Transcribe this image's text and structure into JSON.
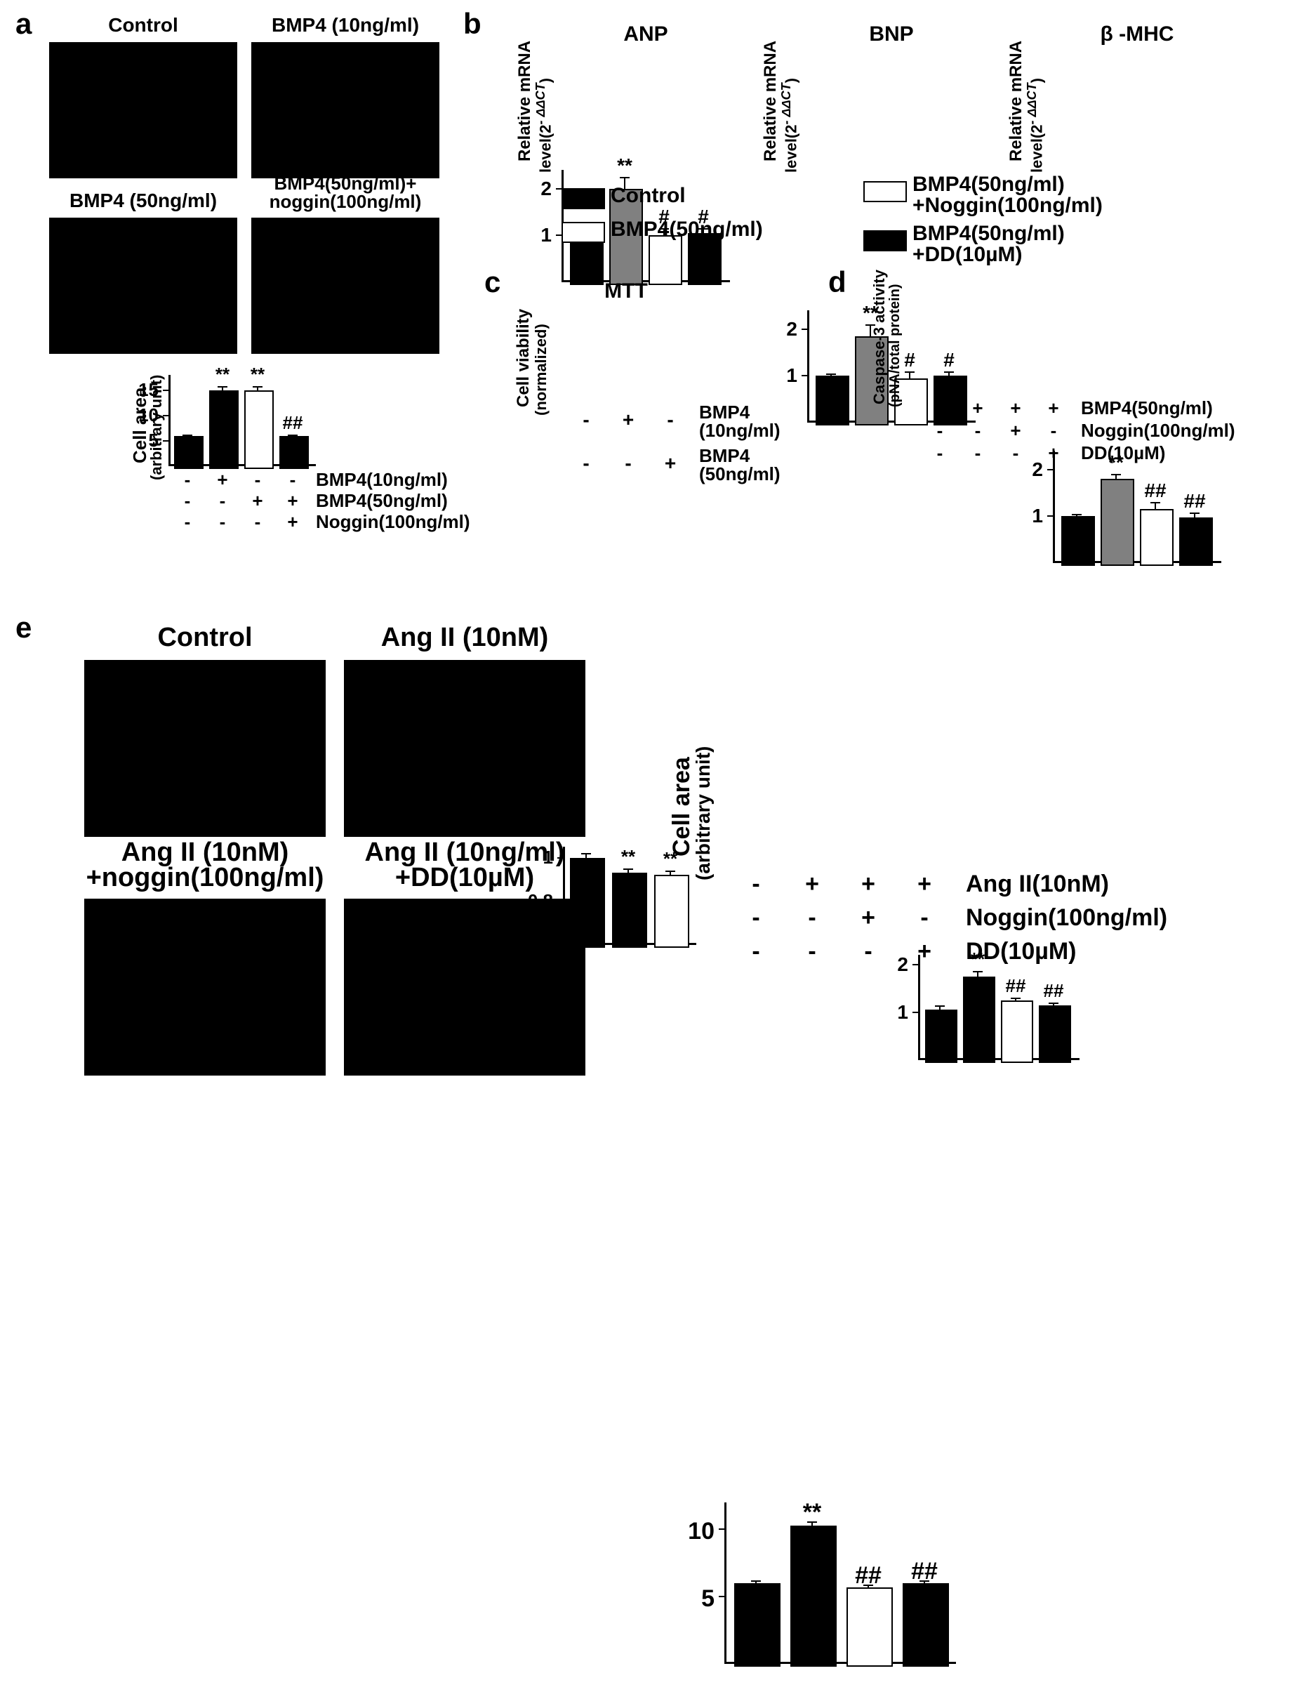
{
  "palette": {
    "black": "#000000",
    "white": "#ffffff"
  },
  "panel_a": {
    "letter": "a",
    "images": [
      {
        "label": "Control"
      },
      {
        "label": "BMP4 (10ng/ml)"
      },
      {
        "label": "BMP4 (50ng/ml)"
      },
      {
        "label": "BMP4(50ng/ml)+\nnoggin(100ng/ml)"
      }
    ],
    "chart": {
      "type": "bar",
      "ylabel_line1": "Cell area",
      "ylabel_line2": "(arbitrary unit)",
      "ymax": 18,
      "yticks": [
        5,
        10,
        15
      ],
      "bars": [
        {
          "value": 6,
          "err": 0.3,
          "fill": "#000000",
          "sig": ""
        },
        {
          "value": 15,
          "err": 0.8,
          "fill": "#000000",
          "sig": "**"
        },
        {
          "value": 15,
          "err": 0.8,
          "fill": "#ffffff",
          "sig": "**"
        },
        {
          "value": 6,
          "err": 0.3,
          "fill": "#000000",
          "sig": "##"
        }
      ],
      "condition_rows": [
        {
          "label": "BMP4(10ng/ml)",
          "marks": [
            "-",
            "+",
            "-",
            "-"
          ]
        },
        {
          "label": "BMP4(50ng/ml)",
          "marks": [
            "-",
            "-",
            "+",
            "+"
          ]
        },
        {
          "label": "Noggin(100ng/ml)",
          "marks": [
            "-",
            "-",
            "-",
            "+"
          ]
        }
      ]
    }
  },
  "panel_b": {
    "letter": "b",
    "charts": [
      {
        "title": "ANP",
        "type": "bar",
        "ymax": 2.4,
        "yticks": [
          1,
          2
        ],
        "bars": [
          {
            "value": 1.0,
            "err": 0.05,
            "fill": "#000000",
            "sig": ""
          },
          {
            "value": 2.0,
            "err": 0.25,
            "fill": "#808080",
            "sig": "**"
          },
          {
            "value": 1.0,
            "err": 0.15,
            "fill": "#ffffff",
            "sig": "#"
          },
          {
            "value": 1.05,
            "err": 0.1,
            "fill": "#000000",
            "sig": "#"
          }
        ]
      },
      {
        "title": "BNP",
        "type": "bar",
        "ymax": 2.4,
        "yticks": [
          1,
          2
        ],
        "bars": [
          {
            "value": 1.0,
            "err": 0.05,
            "fill": "#000000",
            "sig": ""
          },
          {
            "value": 1.85,
            "err": 0.25,
            "fill": "#808080",
            "sig": "**"
          },
          {
            "value": 0.95,
            "err": 0.15,
            "fill": "#ffffff",
            "sig": "#"
          },
          {
            "value": 1.0,
            "err": 0.1,
            "fill": "#000000",
            "sig": "#"
          }
        ]
      },
      {
        "title": "β -MHC",
        "type": "bar",
        "ymax": 2.4,
        "yticks": [
          1,
          2
        ],
        "bars": [
          {
            "value": 1.0,
            "err": 0.05,
            "fill": "#000000",
            "sig": ""
          },
          {
            "value": 1.8,
            "err": 0.1,
            "fill": "#808080",
            "sig": "**"
          },
          {
            "value": 1.15,
            "err": 0.15,
            "fill": "#ffffff",
            "sig": "##"
          },
          {
            "value": 0.98,
            "err": 0.1,
            "fill": "#000000",
            "sig": "##"
          }
        ]
      }
    ],
    "ylabel_line1": "Relative mRNA",
    "ylabel_line2_pre": "level(2",
    "ylabel_line2_sup": "- ΔΔCT",
    "ylabel_line2_post": ")",
    "legend": [
      {
        "fill": "#000000",
        "label": "Control"
      },
      {
        "fill": "#ffffff",
        "label": "BMP4(50ng/ml)"
      },
      {
        "fill": "#ffffff",
        "label": "BMP4(50ng/ml)\n+Noggin(100ng/ml)"
      },
      {
        "fill": "#000000",
        "label": "BMP4(50ng/ml)\n+DD(10µM)"
      }
    ]
  },
  "panel_c": {
    "letter": "c",
    "chart": {
      "title": "MTT",
      "type": "bar",
      "ymin": 0.6,
      "ymax": 1.05,
      "yticks": [
        0.6,
        0.8,
        1.0
      ],
      "ylabel_line1": "Cell viability",
      "ylabel_line2": "(normalized)",
      "bars": [
        {
          "value": 1.0,
          "err": 0.02,
          "fill": "#000000",
          "sig": ""
        },
        {
          "value": 0.93,
          "err": 0.02,
          "fill": "#000000",
          "sig": "**"
        },
        {
          "value": 0.92,
          "err": 0.02,
          "fill": "#ffffff",
          "sig": "**"
        }
      ],
      "condition_rows": [
        {
          "label": "BMP4\n(10ng/ml)",
          "marks": [
            "-",
            "+",
            "-"
          ]
        },
        {
          "label": "BMP4\n(50ng/ml)",
          "marks": [
            "-",
            "-",
            "+"
          ]
        }
      ]
    }
  },
  "panel_d": {
    "letter": "d",
    "chart": {
      "type": "bar",
      "ymax": 2.2,
      "yticks": [
        1,
        2
      ],
      "ylabel_line1": "Caspase-3 activity",
      "ylabel_line2": "(pNA/total protein)",
      "bars": [
        {
          "value": 1.05,
          "err": 0.1,
          "fill": "#000000",
          "sig": ""
        },
        {
          "value": 1.75,
          "err": 0.12,
          "fill": "#000000",
          "sig": "**"
        },
        {
          "value": 1.25,
          "err": 0.05,
          "fill": "#ffffff",
          "sig": "##"
        },
        {
          "value": 1.15,
          "err": 0.05,
          "fill": "#000000",
          "sig": "##"
        }
      ],
      "condition_rows": [
        {
          "label": "BMP4(50ng/ml)",
          "marks": [
            "-",
            "+",
            "+",
            "+"
          ]
        },
        {
          "label": "Noggin(100ng/ml)",
          "marks": [
            "-",
            "-",
            "+",
            "-"
          ]
        },
        {
          "label": "DD(10µM)",
          "marks": [
            "-",
            "-",
            "-",
            "+"
          ]
        }
      ]
    }
  },
  "panel_e": {
    "letter": "e",
    "images": [
      {
        "label": "Control"
      },
      {
        "label": "Ang II (10nM)"
      },
      {
        "label": "Ang II (10nM)\n+noggin(100ng/ml)"
      },
      {
        "label": "Ang II (10ng/ml)\n+DD(10µM)"
      }
    ],
    "chart": {
      "type": "bar",
      "ylabel_line1": "Cell area",
      "ylabel_line2": "(arbitrary unit)",
      "ymax": 12,
      "yticks": [
        5,
        10
      ],
      "bars": [
        {
          "value": 6.0,
          "err": 0.2,
          "fill": "#000000",
          "sig": ""
        },
        {
          "value": 10.3,
          "err": 0.3,
          "fill": "#000000",
          "sig": "**"
        },
        {
          "value": 5.7,
          "err": 0.2,
          "fill": "#ffffff",
          "sig": "##"
        },
        {
          "value": 6.0,
          "err": 0.2,
          "fill": "#000000",
          "sig": "##"
        }
      ],
      "condition_rows": [
        {
          "label": "Ang II(10nM)",
          "marks": [
            "-",
            "+",
            "+",
            "+"
          ]
        },
        {
          "label": "Noggin(100ng/ml)",
          "marks": [
            "-",
            "-",
            "+",
            "-"
          ]
        },
        {
          "label": "DD(10µM)",
          "marks": [
            "-",
            "-",
            "-",
            "+"
          ]
        }
      ]
    }
  }
}
